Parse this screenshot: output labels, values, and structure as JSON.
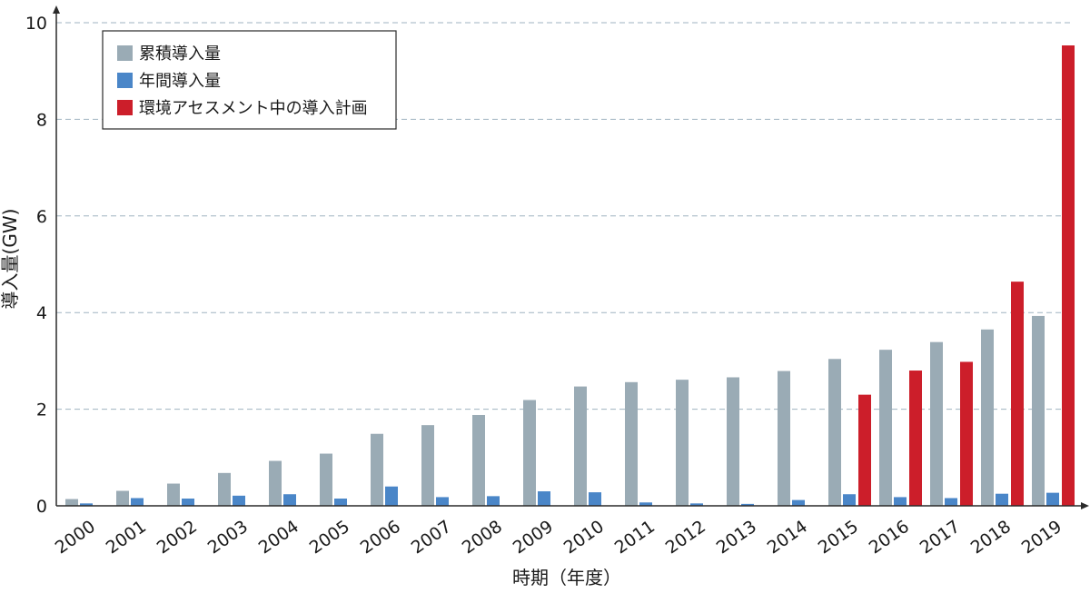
{
  "colors": {
    "cumulative": "#9aabb5",
    "annual": "#4a86c8",
    "planned": "#cc1e2a",
    "grid": "#9fb3c0",
    "axis": "#2a2a2a"
  },
  "chart_data": {
    "type": "bar",
    "xlabel": "時期（年度）",
    "ylabel": "導入量(GW)",
    "ylim": [
      0,
      10
    ],
    "yticks": [
      0,
      2,
      4,
      6,
      8,
      10
    ],
    "grid": true,
    "grid_style": "dashed",
    "legend_placement": "top-left",
    "categories": [
      "2000",
      "2001",
      "2002",
      "2003",
      "2004",
      "2005",
      "2006",
      "2007",
      "2008",
      "2009",
      "2010",
      "2011",
      "2012",
      "2013",
      "2014",
      "2015",
      "2016",
      "2017",
      "2018",
      "2019"
    ],
    "series": [
      {
        "name": "累積導入量",
        "color_key": "cumulative",
        "values": [
          0.14,
          0.31,
          0.46,
          0.68,
          0.93,
          1.08,
          1.49,
          1.67,
          1.88,
          2.19,
          2.47,
          2.56,
          2.61,
          2.66,
          2.79,
          3.04,
          3.23,
          3.39,
          3.65,
          3.93
        ]
      },
      {
        "name": "年間導入量",
        "color_key": "annual",
        "values": [
          0.05,
          0.16,
          0.15,
          0.21,
          0.24,
          0.15,
          0.4,
          0.18,
          0.2,
          0.3,
          0.28,
          0.07,
          0.05,
          0.04,
          0.12,
          0.24,
          0.18,
          0.16,
          0.25,
          0.27
        ]
      },
      {
        "name": "環境アセスメント中の導入計画",
        "color_key": "planned",
        "values": [
          null,
          null,
          null,
          null,
          null,
          null,
          null,
          null,
          null,
          null,
          null,
          null,
          null,
          null,
          null,
          2.3,
          2.8,
          2.98,
          4.64,
          9.53
        ]
      }
    ]
  }
}
